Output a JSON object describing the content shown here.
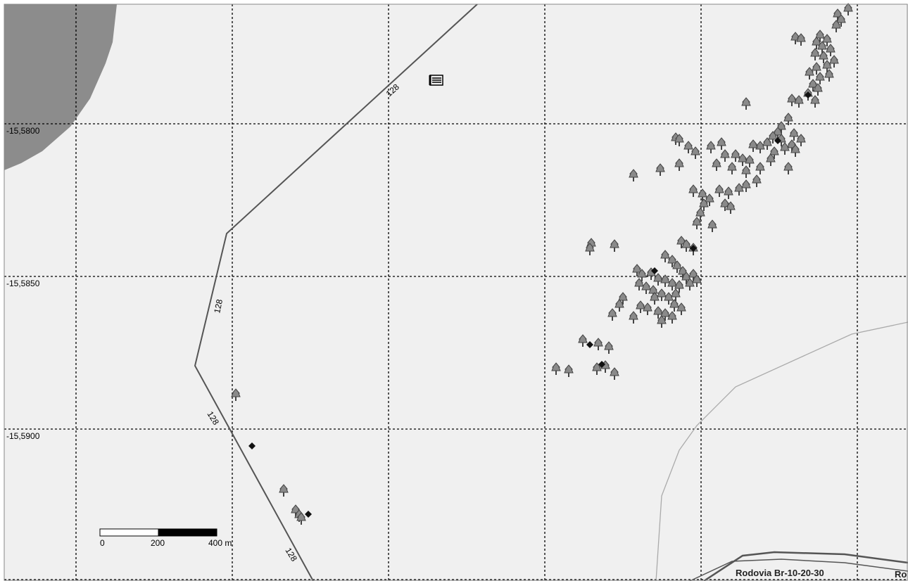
{
  "map": {
    "latitude_labels": [
      "-15,5800",
      "-15,5850",
      "-15,5900"
    ],
    "contour": {
      "elevation_label": "128"
    },
    "road": {
      "name": "Rodovia Br-10-20-30",
      "name_truncated": "Ro"
    },
    "scale_bar": {
      "ticks": [
        "0",
        "200",
        "400 m"
      ]
    },
    "colors": {
      "background": "#f0f0f0",
      "water_area": "#8c8c8c",
      "contour_line": "#555555",
      "road_line": "#555555",
      "thin_road": "#aaaaaa",
      "tree": "#8a8a8a",
      "tree_outline": "#444444",
      "marker": "#111111"
    },
    "icons": [
      "tree-icon",
      "diamond-marker-icon",
      "building-icon"
    ]
  }
}
